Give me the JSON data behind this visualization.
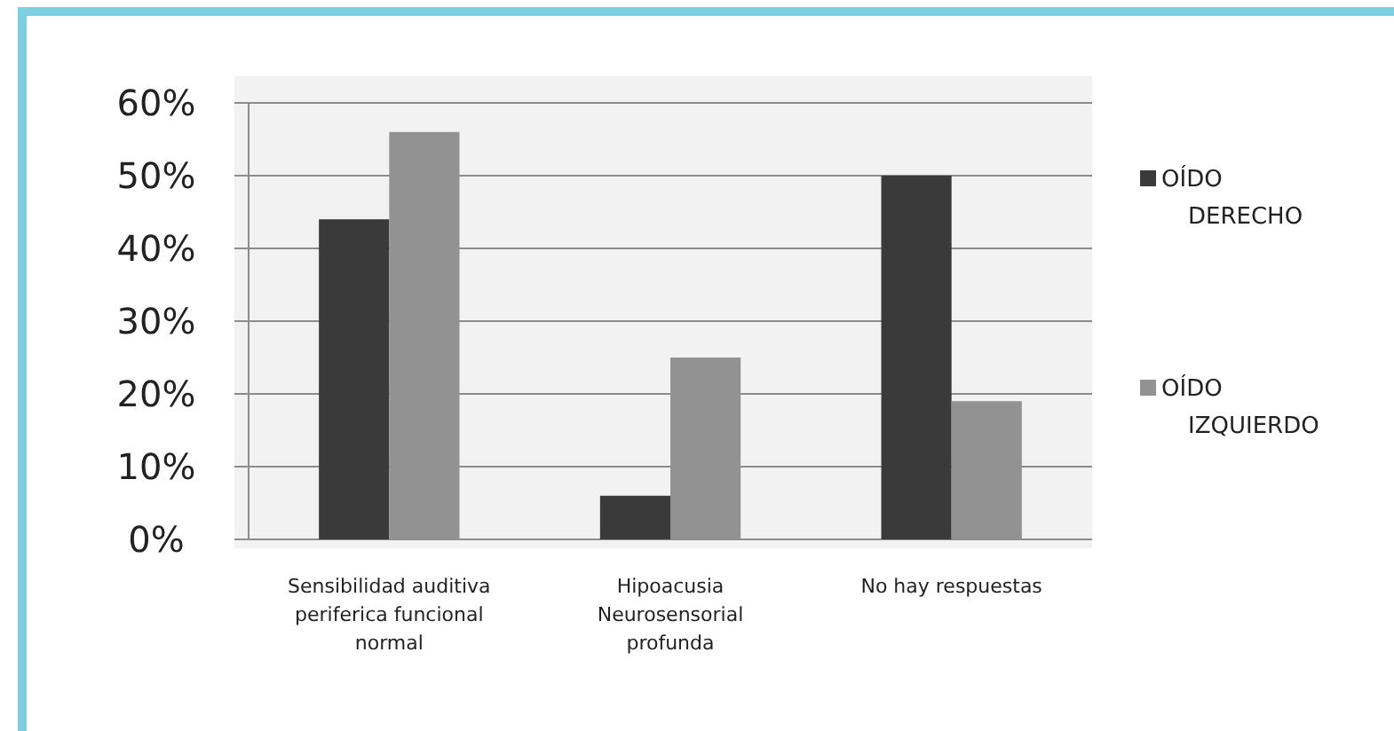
{
  "chart_data": {
    "type": "bar",
    "categories": [
      "Sensibilidad auditiva periferica funcional normal",
      "Hipoacusia Neurosensorial profunda",
      "No hay respuestas"
    ],
    "series": [
      {
        "name": "OÍDO DERECHO",
        "color": "#3a3a3a",
        "values": [
          44,
          6,
          50
        ]
      },
      {
        "name": "OÍDO IZQUIERDO",
        "color": "#929292",
        "values": [
          56,
          25,
          19
        ]
      }
    ],
    "ylim": [
      0,
      60
    ],
    "yticks": [
      {
        "value": 0,
        "label": "0%"
      },
      {
        "value": 10,
        "label": "10%"
      },
      {
        "value": 20,
        "label": "20%"
      },
      {
        "value": 30,
        "label": "30%"
      },
      {
        "value": 40,
        "label": "40%"
      },
      {
        "value": 50,
        "label": "50%"
      },
      {
        "value": 60,
        "label": "60%"
      }
    ],
    "grid": "y",
    "legend": "right"
  }
}
